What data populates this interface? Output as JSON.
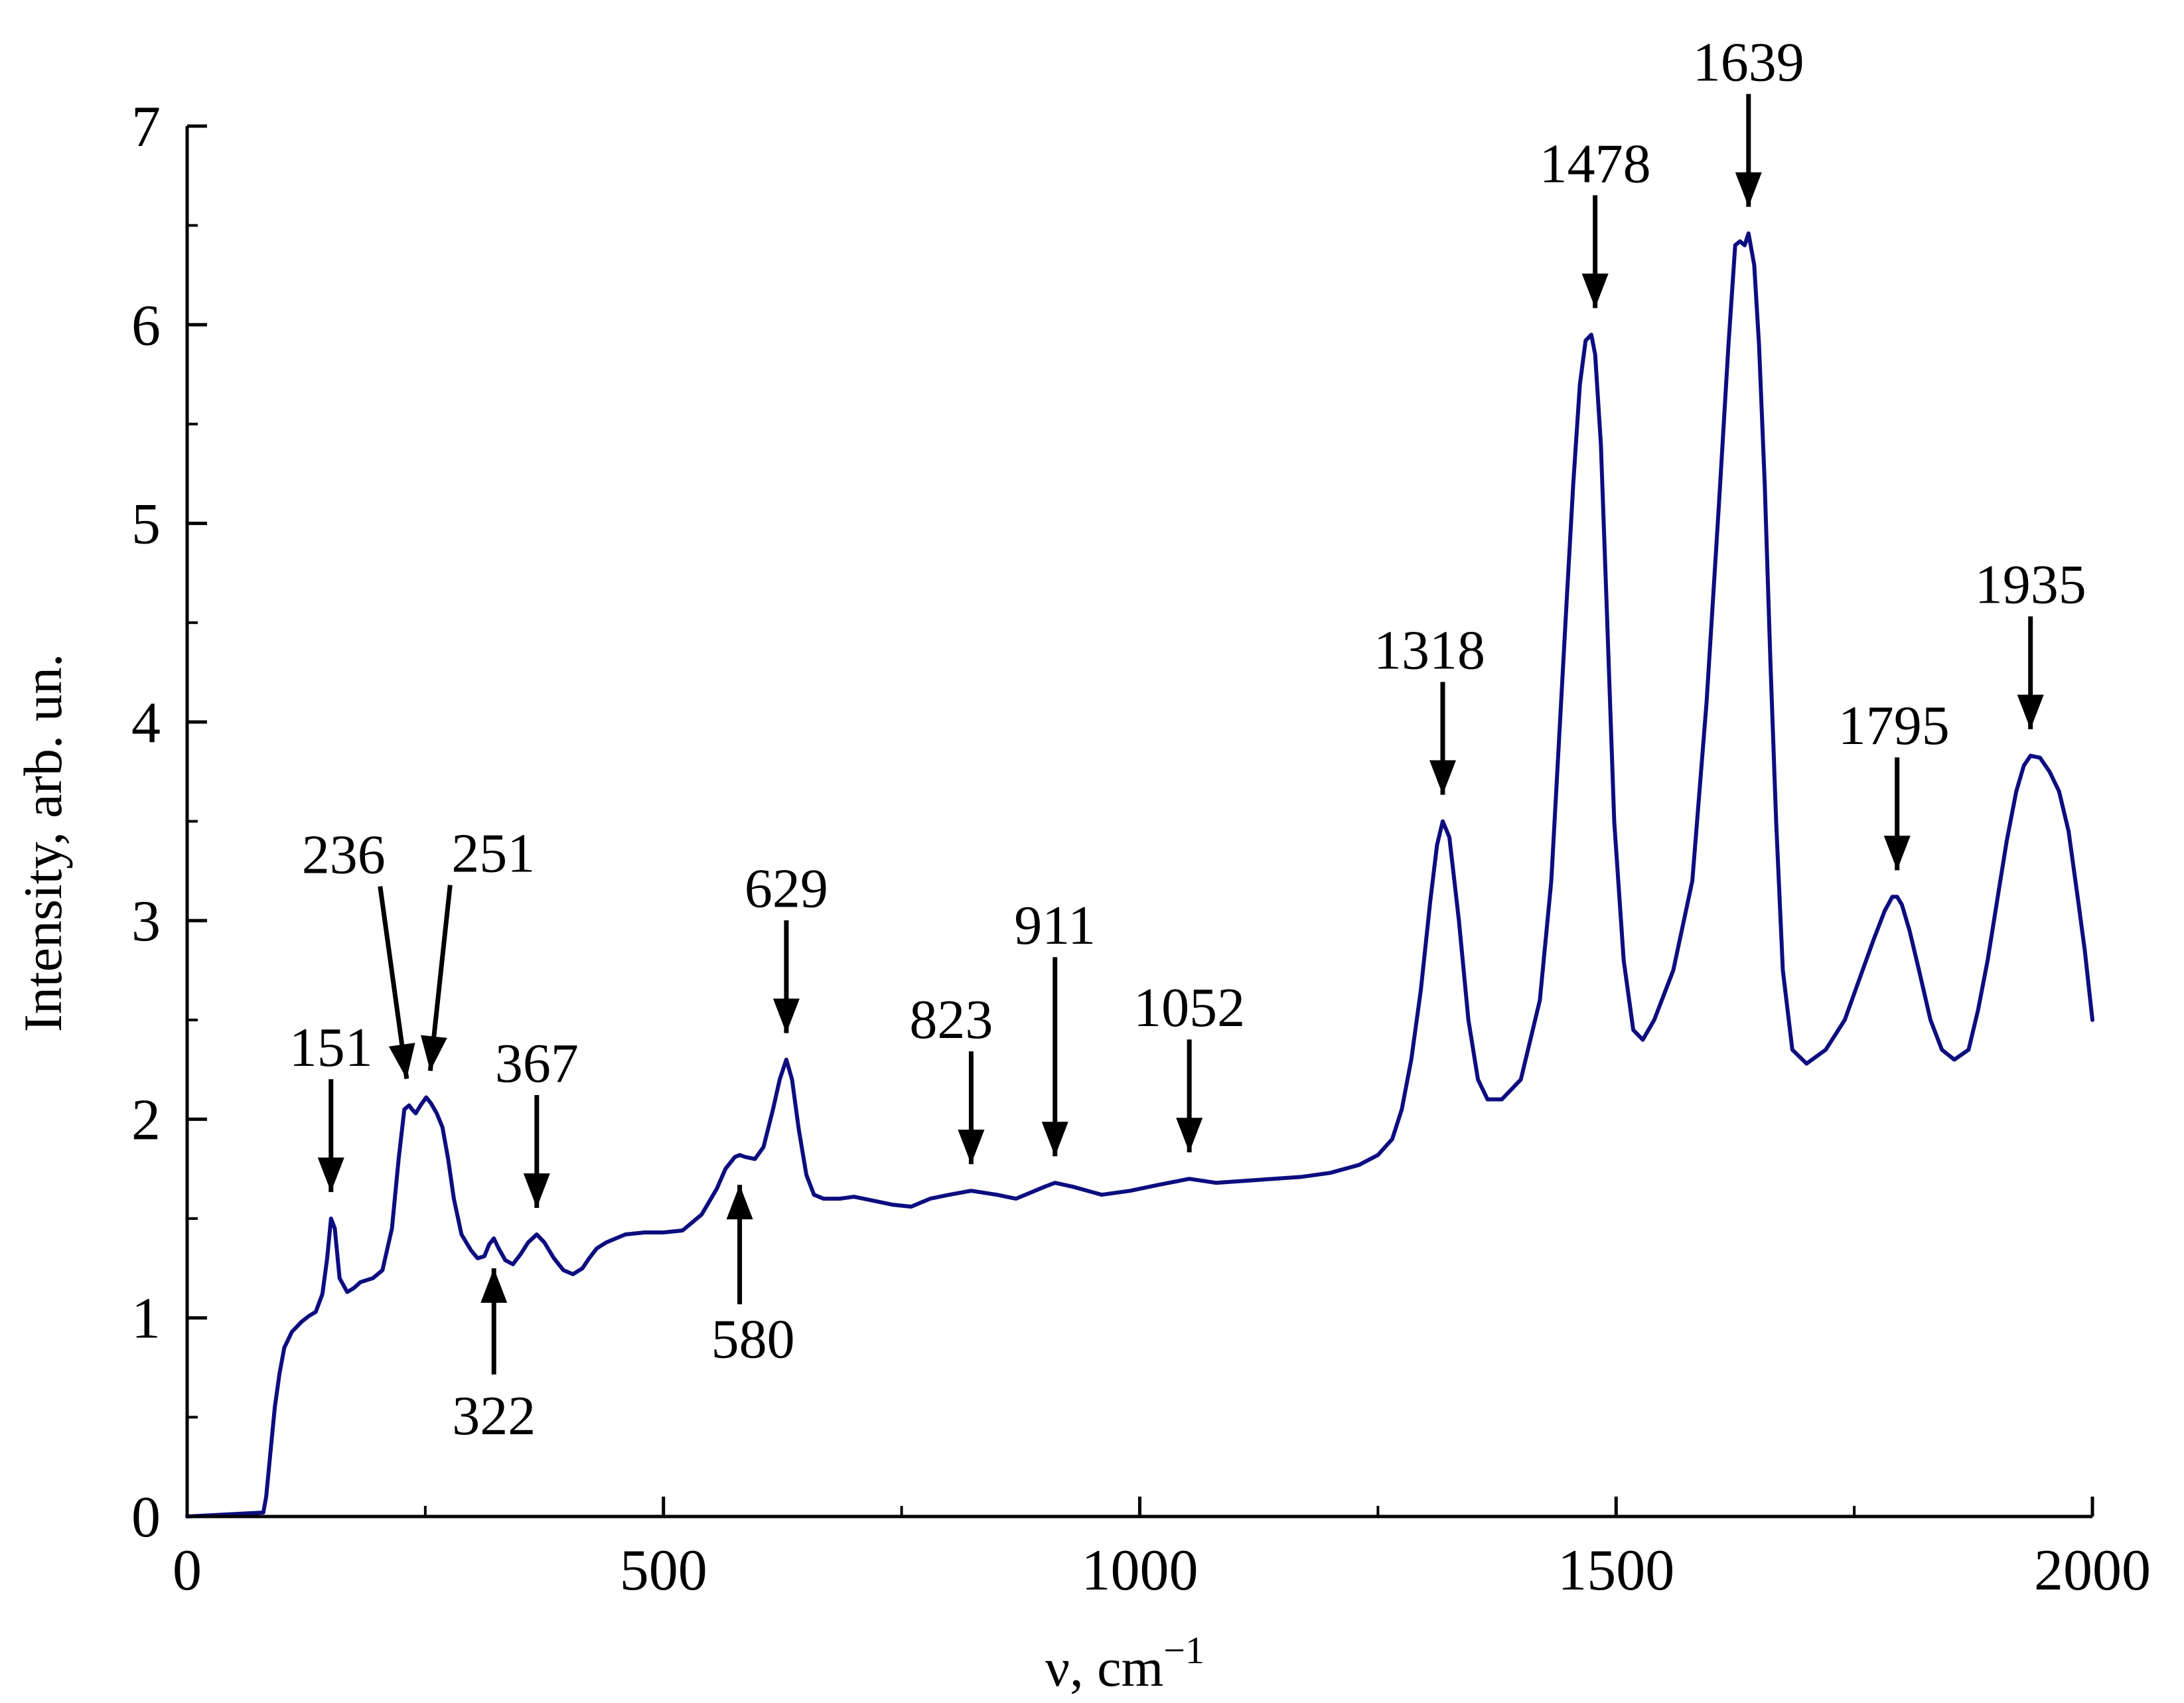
{
  "colors": {
    "series": "#0d0d80",
    "axis": "#000000",
    "background": "#ffffff"
  },
  "chart_data": {
    "type": "line",
    "xlabel": "ν, cm",
    "xlabel_superscript": "−1",
    "ylabel": "Intensity, arb. un.",
    "xlim": [
      0,
      2000
    ],
    "ylim": [
      0,
      7
    ],
    "x_major_ticks": [
      0,
      500,
      1000,
      1500,
      2000
    ],
    "x_minor_step": 250,
    "y_major_ticks": [
      0,
      1,
      2,
      3,
      4,
      5,
      6,
      7
    ],
    "y_minor_step": 0.5,
    "grid": false,
    "legend": "none",
    "series": [
      {
        "x": [
          0,
          40,
          80,
          83,
          88,
          92,
          97,
          102,
          110,
          120,
          128,
          135,
          142,
          147,
          151,
          155,
          160,
          168,
          175,
          182,
          195,
          205,
          215,
          222,
          228,
          233,
          236,
          240,
          245,
          251,
          256,
          262,
          268,
          274,
          280,
          288,
          298,
          305,
          312,
          317,
          322,
          327,
          334,
          342,
          350,
          358,
          367,
          375,
          385,
          395,
          405,
          415,
          422,
          430,
          440,
          460,
          480,
          500,
          520,
          540,
          556,
          565,
          575,
          580,
          586,
          596,
          605,
          615,
          622,
          629,
          635,
          642,
          650,
          658,
          668,
          685,
          700,
          720,
          740,
          760,
          780,
          800,
          823,
          850,
          870,
          900,
          911,
          930,
          960,
          990,
          1020,
          1052,
          1080,
          1110,
          1140,
          1170,
          1200,
          1230,
          1250,
          1265,
          1275,
          1285,
          1295,
          1305,
          1312,
          1318,
          1325,
          1335,
          1345,
          1355,
          1365,
          1380,
          1400,
          1420,
          1432,
          1440,
          1448,
          1455,
          1462,
          1468,
          1474,
          1478,
          1484,
          1490,
          1498,
          1508,
          1518,
          1528,
          1540,
          1560,
          1580,
          1595,
          1608,
          1618,
          1625,
          1630,
          1635,
          1639,
          1645,
          1650,
          1656,
          1662,
          1668,
          1675,
          1685,
          1700,
          1720,
          1740,
          1755,
          1770,
          1782,
          1790,
          1795,
          1800,
          1808,
          1818,
          1830,
          1842,
          1855,
          1870,
          1880,
          1890,
          1900,
          1910,
          1920,
          1928,
          1935,
          1945,
          1955,
          1965,
          1975,
          1985,
          1992,
          2000
        ],
        "y": [
          0.0,
          0.01,
          0.02,
          0.1,
          0.35,
          0.55,
          0.72,
          0.85,
          0.93,
          0.98,
          1.01,
          1.03,
          1.12,
          1.3,
          1.5,
          1.45,
          1.2,
          1.13,
          1.15,
          1.18,
          1.2,
          1.24,
          1.45,
          1.8,
          2.05,
          2.07,
          2.05,
          2.03,
          2.07,
          2.11,
          2.08,
          2.03,
          1.96,
          1.8,
          1.6,
          1.42,
          1.34,
          1.3,
          1.31,
          1.37,
          1.4,
          1.35,
          1.29,
          1.27,
          1.32,
          1.38,
          1.42,
          1.38,
          1.3,
          1.24,
          1.22,
          1.25,
          1.3,
          1.35,
          1.38,
          1.42,
          1.43,
          1.43,
          1.44,
          1.52,
          1.65,
          1.75,
          1.81,
          1.82,
          1.81,
          1.8,
          1.86,
          2.05,
          2.2,
          2.3,
          2.2,
          1.95,
          1.72,
          1.62,
          1.6,
          1.6,
          1.61,
          1.59,
          1.57,
          1.56,
          1.6,
          1.62,
          1.64,
          1.62,
          1.6,
          1.66,
          1.68,
          1.66,
          1.62,
          1.64,
          1.67,
          1.7,
          1.68,
          1.69,
          1.7,
          1.71,
          1.73,
          1.77,
          1.82,
          1.9,
          2.05,
          2.3,
          2.65,
          3.1,
          3.38,
          3.5,
          3.42,
          3.0,
          2.5,
          2.2,
          2.1,
          2.1,
          2.2,
          2.6,
          3.2,
          3.9,
          4.6,
          5.2,
          5.7,
          5.92,
          5.95,
          5.85,
          5.4,
          4.6,
          3.5,
          2.8,
          2.45,
          2.4,
          2.5,
          2.75,
          3.2,
          4.1,
          5.1,
          5.9,
          6.4,
          6.42,
          6.4,
          6.46,
          6.3,
          5.9,
          5.2,
          4.3,
          3.5,
          2.75,
          2.35,
          2.28,
          2.35,
          2.5,
          2.7,
          2.9,
          3.05,
          3.12,
          3.12,
          3.08,
          2.95,
          2.75,
          2.5,
          2.35,
          2.3,
          2.35,
          2.55,
          2.8,
          3.1,
          3.4,
          3.65,
          3.78,
          3.83,
          3.82,
          3.75,
          3.65,
          3.45,
          3.1,
          2.85,
          2.5
        ]
      }
    ],
    "annotations": [
      {
        "label": "151",
        "x": 151,
        "y": 1.5,
        "dir": "down"
      },
      {
        "label": "236",
        "x": 236,
        "y": 2.07,
        "dir": "down"
      },
      {
        "label": "251",
        "x": 251,
        "y": 2.11,
        "dir": "down"
      },
      {
        "label": "322",
        "x": 322,
        "y": 1.4,
        "dir": "up"
      },
      {
        "label": "367",
        "x": 367,
        "y": 1.42,
        "dir": "down"
      },
      {
        "label": "580",
        "x": 580,
        "y": 1.82,
        "dir": "up"
      },
      {
        "label": "629",
        "x": 629,
        "y": 2.3,
        "dir": "down"
      },
      {
        "label": "823",
        "x": 823,
        "y": 1.64,
        "dir": "down"
      },
      {
        "label": "911",
        "x": 911,
        "y": 1.68,
        "dir": "down"
      },
      {
        "label": "1052",
        "x": 1052,
        "y": 1.7,
        "dir": "down"
      },
      {
        "label": "1318",
        "x": 1318,
        "y": 3.5,
        "dir": "down"
      },
      {
        "label": "1478",
        "x": 1478,
        "y": 5.95,
        "dir": "down"
      },
      {
        "label": "1639",
        "x": 1639,
        "y": 6.46,
        "dir": "down"
      },
      {
        "label": "1795",
        "x": 1795,
        "y": 3.12,
        "dir": "down"
      },
      {
        "label": "1935",
        "x": 1935,
        "y": 3.83,
        "dir": "down"
      }
    ]
  }
}
